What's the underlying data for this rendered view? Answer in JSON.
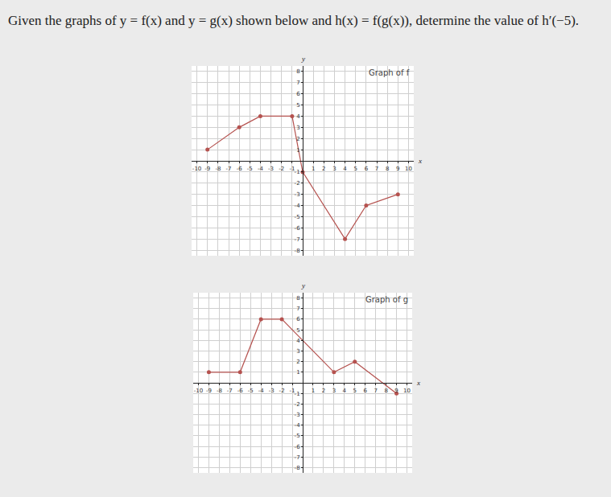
{
  "question": "Given the graphs of y = f(x) and y = g(x) shown below and h(x) = f(g(x)), determine the value of h′(−5).",
  "chart_data": [
    {
      "type": "line",
      "title": "Graph of f",
      "xlabel": "x",
      "ylabel": "y",
      "x": [
        -9,
        -6,
        -4,
        -1,
        0,
        4,
        6,
        9
      ],
      "values": [
        1,
        3,
        4,
        4,
        -1,
        -7,
        -4,
        -3
      ],
      "color": "#b5524f",
      "marker": "circle",
      "grid": true,
      "xlim": [
        -10.5,
        10.5
      ],
      "ylim": [
        -8.5,
        8.5
      ],
      "xticks": [
        -10,
        -9,
        -8,
        -7,
        -6,
        -5,
        -4,
        -3,
        -2,
        -1,
        1,
        2,
        3,
        4,
        5,
        6,
        7,
        8,
        9,
        10
      ],
      "yticks": [
        -8,
        -7,
        -6,
        -5,
        -4,
        -3,
        -2,
        -1,
        1,
        2,
        3,
        4,
        5,
        6,
        7,
        8
      ]
    },
    {
      "type": "line",
      "title": "Graph of g",
      "xlabel": "x",
      "ylabel": "y",
      "x": [
        -9,
        -6,
        -4,
        -2,
        3,
        5,
        9
      ],
      "values": [
        1,
        1,
        6,
        6,
        1,
        2,
        -1
      ],
      "color": "#b5524f",
      "marker": "circle",
      "grid": true,
      "xlim": [
        -10.5,
        10.5
      ],
      "ylim": [
        -8.5,
        8.5
      ],
      "xticks": [
        -10,
        -9,
        -8,
        -7,
        -6,
        -5,
        -4,
        -3,
        -2,
        -1,
        1,
        2,
        3,
        4,
        5,
        6,
        7,
        8,
        9,
        10
      ],
      "yticks": [
        -8,
        -7,
        -6,
        -5,
        -4,
        -3,
        -2,
        -1,
        1,
        2,
        3,
        4,
        5,
        6,
        7,
        8
      ]
    }
  ]
}
